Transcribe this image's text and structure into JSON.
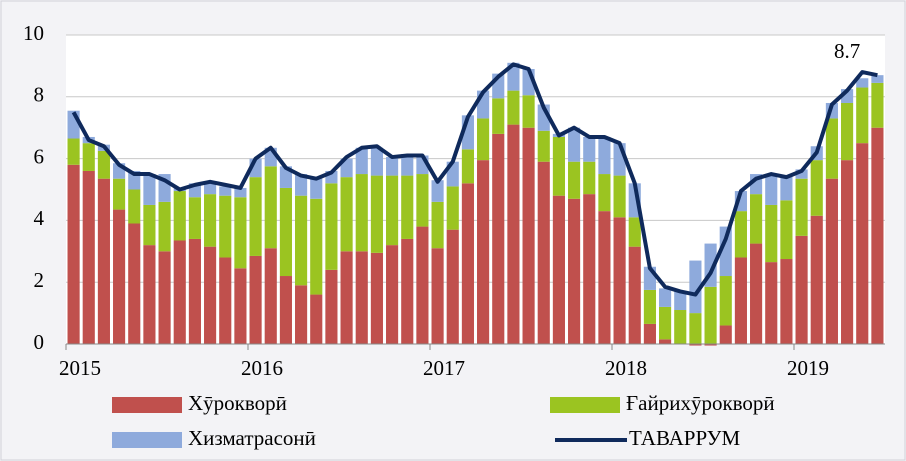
{
  "chart_data": {
    "type": "bar",
    "stacked": true,
    "categories": [
      "2015",
      null,
      null,
      null,
      null,
      null,
      null,
      null,
      null,
      null,
      null,
      null,
      "2016",
      null,
      null,
      null,
      null,
      null,
      null,
      null,
      null,
      null,
      null,
      null,
      "2017",
      null,
      null,
      null,
      null,
      null,
      null,
      null,
      null,
      null,
      null,
      null,
      "2018",
      null,
      null,
      null,
      null,
      null,
      null,
      null,
      null,
      null,
      null,
      null,
      "2019",
      null,
      null,
      null,
      null,
      null
    ],
    "series": [
      {
        "name": "Хӯрокворӣ",
        "type": "bar",
        "color": "#c0504d",
        "values": [
          5.8,
          5.6,
          5.35,
          4.35,
          3.9,
          3.2,
          3.0,
          3.35,
          3.4,
          3.15,
          2.8,
          2.45,
          2.85,
          3.1,
          2.2,
          1.9,
          1.6,
          2.4,
          3.0,
          3.0,
          2.95,
          3.2,
          3.4,
          3.8,
          3.1,
          3.7,
          5.2,
          5.95,
          6.8,
          7.1,
          7.0,
          5.9,
          4.8,
          4.7,
          4.85,
          4.3,
          4.1,
          3.15,
          0.65,
          0.15,
          0.0,
          -0.05,
          -0.05,
          0.6,
          2.8,
          3.25,
          2.65,
          2.75,
          3.5,
          4.15,
          5.35,
          5.95,
          6.5,
          7.0
        ]
      },
      {
        "name": "Ғайрихӯрокворӣ",
        "type": "bar",
        "color": "#9bc421",
        "values": [
          0.85,
          0.9,
          0.9,
          1.0,
          1.1,
          1.3,
          1.6,
          1.6,
          1.35,
          1.7,
          2.0,
          2.3,
          2.55,
          2.65,
          2.85,
          2.9,
          3.1,
          2.8,
          2.4,
          2.5,
          2.5,
          2.25,
          2.05,
          1.7,
          1.5,
          1.4,
          1.1,
          1.35,
          1.15,
          1.1,
          1.05,
          1.0,
          1.9,
          1.2,
          1.05,
          1.2,
          1.35,
          0.95,
          1.1,
          1.05,
          1.1,
          1.0,
          1.85,
          1.6,
          1.5,
          1.6,
          1.85,
          1.9,
          1.85,
          1.8,
          1.95,
          1.85,
          1.8,
          1.45
        ]
      },
      {
        "name": "Хизматрасонӣ",
        "type": "bar",
        "color": "#8eaadc",
        "values": [
          0.9,
          0.2,
          0.2,
          0.5,
          0.6,
          1.0,
          0.9,
          0.1,
          0.45,
          0.4,
          0.3,
          0.3,
          0.6,
          0.6,
          0.7,
          0.7,
          0.7,
          0.4,
          0.6,
          0.85,
          0.9,
          0.6,
          0.7,
          0.6,
          0.7,
          0.8,
          1.1,
          0.9,
          0.8,
          0.9,
          0.85,
          0.85,
          0.1,
          1.1,
          0.8,
          1.2,
          1.05,
          1.1,
          0.75,
          0.6,
          0.6,
          1.7,
          1.4,
          1.6,
          0.65,
          0.65,
          0.95,
          0.8,
          0.3,
          0.45,
          0.5,
          0.45,
          0.3,
          0.25
        ]
      },
      {
        "name": "ТАВАРРУМ",
        "type": "line",
        "color": "#0f2a5c",
        "values": [
          7.5,
          6.6,
          6.4,
          5.8,
          5.5,
          5.5,
          5.3,
          5.0,
          5.15,
          5.25,
          5.15,
          5.05,
          6.0,
          6.35,
          5.7,
          5.45,
          5.35,
          5.55,
          6.05,
          6.35,
          6.4,
          6.05,
          6.1,
          6.1,
          5.25,
          5.9,
          7.35,
          8.15,
          8.65,
          9.05,
          8.9,
          7.65,
          6.75,
          7.0,
          6.7,
          6.7,
          6.5,
          5.2,
          2.45,
          1.85,
          1.7,
          1.6,
          2.3,
          3.4,
          4.95,
          5.35,
          5.5,
          5.4,
          5.6,
          6.2,
          7.75,
          8.2,
          8.8,
          8.7
        ]
      }
    ],
    "annotation": "8.7",
    "ylim": [
      0,
      10
    ],
    "yticks": [
      0,
      2,
      4,
      6,
      8,
      10
    ],
    "grid": true
  }
}
